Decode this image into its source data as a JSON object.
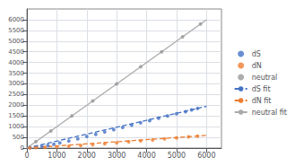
{
  "chart_data": {
    "type": "scatter",
    "xlim": [
      0,
      6500
    ],
    "ylim": [
      0,
      6500
    ],
    "xticks": [
      0,
      1000,
      2000,
      3000,
      4000,
      5000,
      6000
    ],
    "yticks": [
      0,
      500,
      1000,
      1500,
      2000,
      2500,
      3000,
      3500,
      4000,
      4500,
      5000,
      5500,
      6000
    ],
    "grid": true,
    "legend": "right",
    "series": [
      {
        "name": "dS",
        "type": "scatter",
        "marker": "circle",
        "color": "#4472c4",
        "x": [
          100,
          300,
          500,
          700,
          900,
          1100,
          1400,
          1700,
          2000,
          2300,
          2600,
          2900,
          3200,
          3500,
          3800,
          4100,
          4400,
          4700,
          5000,
          5300,
          5500,
          5700
        ],
        "values": [
          20,
          50,
          80,
          130,
          180,
          240,
          330,
          430,
          540,
          640,
          750,
          860,
          960,
          1070,
          1180,
          1280,
          1390,
          1500,
          1600,
          1700,
          1780,
          1850
        ]
      },
      {
        "name": "dN",
        "type": "scatter",
        "marker": "circle",
        "color": "#ed7d31",
        "x": [
          100,
          300,
          600,
          1000,
          1400,
          1800,
          2200,
          2600,
          3000,
          3400,
          3800,
          4200,
          4600,
          5000,
          5400,
          5700
        ],
        "values": [
          5,
          15,
          30,
          55,
          85,
          120,
          160,
          200,
          245,
          290,
          335,
          380,
          425,
          470,
          520,
          560
        ]
      },
      {
        "name": "neutral",
        "type": "scatter",
        "marker": "circle",
        "color": "#999999",
        "x": [
          300,
          800,
          1500,
          2200,
          3000,
          3800,
          4500,
          5200,
          5800
        ],
        "values": [
          300,
          800,
          1500,
          2200,
          3000,
          3800,
          4500,
          5200,
          5800
        ]
      },
      {
        "name": "dS fit",
        "type": "line",
        "line_style": "dashed",
        "color": "#4472c4",
        "x": [
          0,
          6000
        ],
        "values": [
          0,
          1950
        ]
      },
      {
        "name": "dN fit",
        "type": "line",
        "line_style": "dashed",
        "color": "#ed7d31",
        "x": [
          0,
          6000
        ],
        "values": [
          0,
          590
        ]
      },
      {
        "name": "neutral fit",
        "type": "line",
        "line_style": "solid",
        "color": "#aaaaaa",
        "x": [
          0,
          6000
        ],
        "values": [
          0,
          6000
        ]
      }
    ]
  }
}
